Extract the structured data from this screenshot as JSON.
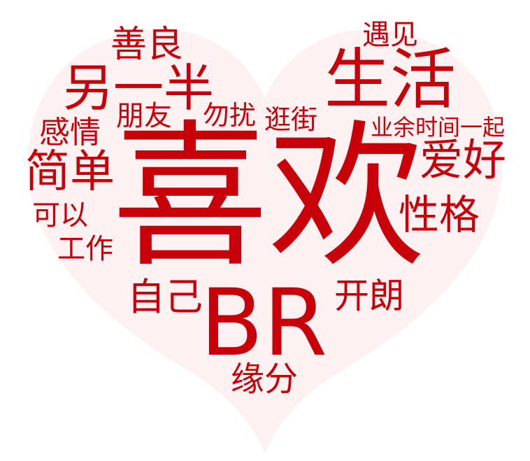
{
  "colors": {
    "background": "#ffffff",
    "heart_fill": "#fdf1f1",
    "word": "#c8000a"
  },
  "words": [
    {
      "id": "xihuan",
      "text": "喜欢"
    },
    {
      "id": "br",
      "text": "BR"
    },
    {
      "id": "shenghuo",
      "text": "生活"
    },
    {
      "id": "lingyiban",
      "text": "另一半"
    },
    {
      "id": "jiandan",
      "text": "简单"
    },
    {
      "id": "aihao",
      "text": "爱好"
    },
    {
      "id": "xingge",
      "text": "性格"
    },
    {
      "id": "shanliang",
      "text": "善良"
    },
    {
      "id": "ziji",
      "text": "自己"
    },
    {
      "id": "kailang",
      "text": "开朗"
    },
    {
      "id": "yuanfen",
      "text": "缘分"
    },
    {
      "id": "ganqing",
      "text": "感情"
    },
    {
      "id": "pengyou",
      "text": "朋友"
    },
    {
      "id": "wurao",
      "text": "勿扰"
    },
    {
      "id": "guangjie",
      "text": "逛街"
    },
    {
      "id": "yujian",
      "text": "遇见"
    },
    {
      "id": "yeyu",
      "text": "业余时间一起"
    },
    {
      "id": "keyi",
      "text": "可以"
    },
    {
      "id": "gongzuo",
      "text": "工作"
    }
  ]
}
